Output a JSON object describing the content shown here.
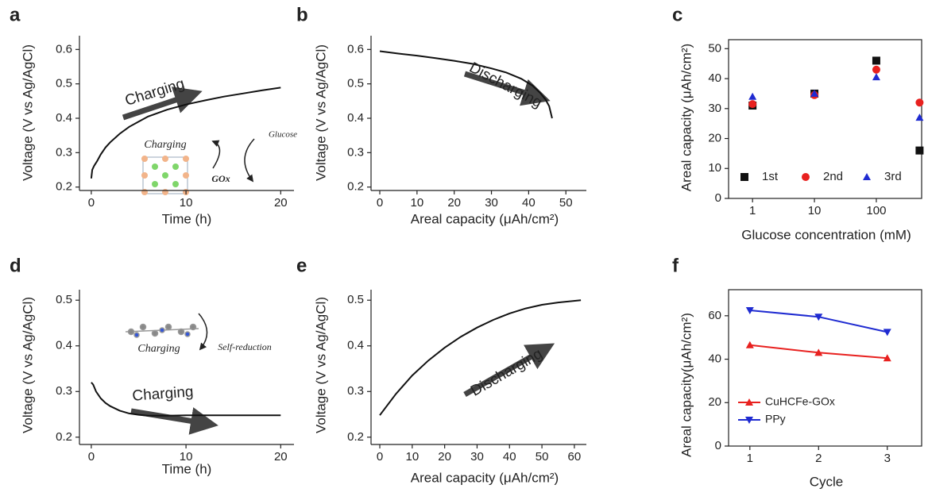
{
  "chart_data": [
    {
      "type": "line",
      "label": "a",
      "xlabel": "Time (h)",
      "ylabel": "Voltage (V vs Ag/AgCl)",
      "x": [
        0,
        0.1,
        0.3,
        0.6,
        1,
        1.5,
        2,
        3,
        4,
        5,
        6,
        8,
        10,
        12,
        14,
        16,
        18,
        20
      ],
      "values": [
        0.225,
        0.25,
        0.262,
        0.275,
        0.295,
        0.315,
        0.33,
        0.355,
        0.375,
        0.39,
        0.405,
        0.425,
        0.44,
        0.452,
        0.463,
        0.472,
        0.481,
        0.489
      ],
      "color": "#111111",
      "xlim": [
        -1.25,
        21.4
      ],
      "xticks": [
        0,
        10,
        20
      ],
      "ylim": [
        0.19,
        0.64
      ],
      "yticks": [
        0.2,
        0.3,
        0.4,
        0.5,
        0.6
      ],
      "frame": false,
      "annotations": [
        "Charging",
        "Charging",
        "GOx",
        "Glucose"
      ]
    },
    {
      "type": "line",
      "label": "b",
      "xlabel": "Areal capacity (μAh/cm²)",
      "ylabel": "Voltage (V vs Ag/AgCl)",
      "x": [
        0,
        5,
        10,
        15,
        20,
        25,
        30,
        34,
        38,
        41,
        43,
        44.5,
        45.5,
        46.3
      ],
      "values": [
        0.595,
        0.588,
        0.582,
        0.575,
        0.567,
        0.558,
        0.545,
        0.533,
        0.515,
        0.495,
        0.475,
        0.455,
        0.435,
        0.4
      ],
      "color": "#111111",
      "xlim": [
        -2.35,
        55.5
      ],
      "xticks": [
        0,
        10,
        20,
        30,
        40,
        50
      ],
      "ylim": [
        0.19,
        0.64
      ],
      "yticks": [
        0.2,
        0.3,
        0.4,
        0.5,
        0.6
      ],
      "frame": false,
      "annotations": [
        "Discharging"
      ]
    },
    {
      "type": "scatter",
      "label": "c",
      "xlabel": "Glucose concentration (mM)",
      "ylabel": "Areal capacity (μAh/cm²)",
      "x": [
        1,
        10,
        100,
        500
      ],
      "xscale": "log",
      "series": [
        {
          "name": "1st",
          "color": "#111111",
          "marker": "square",
          "values": [
            31,
            35,
            46,
            16
          ]
        },
        {
          "name": "2nd",
          "color": "#e8211f",
          "marker": "circle",
          "values": [
            31.5,
            34.5,
            43,
            32
          ]
        },
        {
          "name": "3rd",
          "color": "#1f2bd1",
          "marker": "triangle-up",
          "values": [
            34,
            35,
            40.5,
            27
          ]
        }
      ],
      "xlim": [
        0.41,
        540
      ],
      "xticks": [
        1,
        10,
        100
      ],
      "ylim": [
        0,
        53
      ],
      "yticks": [
        0,
        10,
        20,
        30,
        40,
        50
      ],
      "frame": true,
      "legend": "lower right"
    },
    {
      "type": "line",
      "label": "d",
      "xlabel": "Time (h)",
      "ylabel": "Voltage (V vs Ag/AgCl)",
      "x": [
        0,
        0.2,
        0.5,
        1,
        1.5,
        2,
        3,
        4,
        5,
        6,
        8,
        10,
        12,
        14,
        16,
        18,
        20
      ],
      "values": [
        0.32,
        0.315,
        0.3,
        0.285,
        0.275,
        0.268,
        0.258,
        0.252,
        0.249,
        0.247,
        0.247,
        0.248,
        0.248,
        0.248,
        0.248,
        0.248,
        0.248
      ],
      "color": "#111111",
      "xlim": [
        -1.25,
        21.4
      ],
      "xticks": [
        0,
        10,
        20
      ],
      "ylim": [
        0.184,
        0.523
      ],
      "yticks": [
        0.2,
        0.3,
        0.4,
        0.5
      ],
      "frame": false,
      "annotations": [
        "Charging",
        "Self-reduction",
        "Charging"
      ]
    },
    {
      "type": "line",
      "label": "e",
      "xlabel": "Areal capacity (μAh/cm²)",
      "ylabel": "Voltage (V vs Ag/AgCl)",
      "x": [
        0,
        5,
        10,
        15,
        20,
        25,
        30,
        35,
        40,
        45,
        50,
        55,
        62
      ],
      "values": [
        0.248,
        0.295,
        0.335,
        0.368,
        0.396,
        0.42,
        0.44,
        0.457,
        0.471,
        0.482,
        0.49,
        0.495,
        0.5
      ],
      "color": "#111111",
      "xlim": [
        -2.7,
        63.7
      ],
      "xticks": [
        0,
        10,
        20,
        30,
        40,
        50,
        60
      ],
      "ylim": [
        0.184,
        0.523
      ],
      "yticks": [
        0.2,
        0.3,
        0.4,
        0.5
      ],
      "frame": false,
      "annotations": [
        "Discharging"
      ]
    },
    {
      "type": "line",
      "label": "f",
      "xlabel": "Cycle",
      "ylabel": "Areal capacity(μAh/cm²)",
      "x": [
        1,
        2,
        3
      ],
      "series": [
        {
          "name": "CuHCFe-GOx",
          "color": "#e8211f",
          "marker": "triangle-up",
          "values": [
            46.5,
            43,
            40.5
          ]
        },
        {
          "name": "PPy",
          "color": "#1f2bd1",
          "marker": "triangle-down",
          "values": [
            62.5,
            59.5,
            52.5
          ]
        }
      ],
      "xlim": [
        0.69,
        3.5
      ],
      "xticks": [
        1,
        2,
        3
      ],
      "ylim": [
        0,
        72
      ],
      "yticks": [
        0,
        20,
        40,
        60
      ],
      "frame": true,
      "legend": "lower left"
    }
  ]
}
